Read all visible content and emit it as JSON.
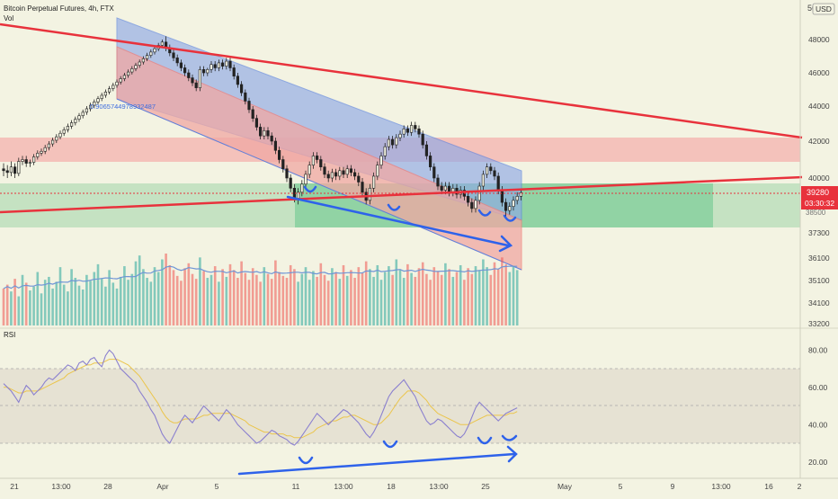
{
  "header": {
    "title": "Bitcoin Perpetual Futures, 4h, FTX",
    "vol_label": "Vol",
    "currency": "USD"
  },
  "fib_label": "0.9065744978932487",
  "price_axis": {
    "ticks": [
      48000,
      46000,
      44000,
      42000,
      40000,
      37300,
      36100,
      35100,
      34100,
      33200
    ],
    "top_partial": "50"
  },
  "last_price": {
    "value": "39280",
    "countdown": "03:30:32",
    "partial": "38500"
  },
  "rsi": {
    "label": "RSI",
    "ticks": [
      "80.00",
      "60.00",
      "40.00",
      "20.00"
    ],
    "band": [
      30,
      70
    ],
    "midline": 50
  },
  "time_axis": {
    "labels": [
      "21",
      "13:00",
      "28",
      "Apr",
      "5",
      "11",
      "13:00",
      "18",
      "13:00",
      "25",
      "May",
      "5",
      "9",
      "13:00",
      "16",
      "2"
    ]
  },
  "colors": {
    "background": "#f3f3e2",
    "up": "#26a69a",
    "down": "#ef5350",
    "trendline": "#e8323c",
    "annotation": "#2e62ea",
    "channel_upper": "#8ea9e6",
    "channel_lower": "#f1a8a3",
    "support_zone": "#7fce9a",
    "resistance_zone": "#f3b9b4",
    "rsi_line": "#8b80cf",
    "rsi_ma": "#ebc54c",
    "volume_ma": "#6f95d6"
  },
  "chart_data": {
    "type": "candlestick",
    "title": "Bitcoin Perpetual Futures, 4h, FTX",
    "ylabel": "USD",
    "ylim": [
      33000,
      50000
    ],
    "candles": [
      [
        40500,
        40400,
        40800,
        40100
      ],
      [
        40400,
        40300,
        40700,
        40000
      ],
      [
        40300,
        40600,
        40900,
        40100
      ],
      [
        40600,
        40250,
        40800,
        40000
      ],
      [
        40250,
        40900,
        41100,
        40100
      ],
      [
        40900,
        41000,
        41200,
        40700
      ],
      [
        41000,
        40800,
        41200,
        40600
      ],
      [
        40800,
        40850,
        41000,
        40600
      ],
      [
        40850,
        41150,
        41300,
        40700
      ],
      [
        41150,
        41350,
        41500,
        41000
      ],
      [
        41350,
        41450,
        41600,
        41200
      ],
      [
        41450,
        41650,
        41800,
        41300
      ],
      [
        41650,
        41850,
        42000,
        41500
      ],
      [
        41850,
        42050,
        42200,
        41700
      ],
      [
        42050,
        42250,
        42400,
        41900
      ],
      [
        42250,
        42450,
        42600,
        42100
      ],
      [
        42450,
        42650,
        42800,
        42300
      ],
      [
        42650,
        42850,
        43000,
        42500
      ],
      [
        42850,
        43050,
        43200,
        42700
      ],
      [
        43050,
        43250,
        43400,
        42900
      ],
      [
        43250,
        43450,
        43600,
        43100
      ],
      [
        43450,
        43650,
        43800,
        43300
      ],
      [
        43650,
        43850,
        44000,
        43500
      ],
      [
        43850,
        44050,
        44200,
        43700
      ],
      [
        44050,
        44250,
        44400,
        43900
      ],
      [
        44250,
        44450,
        44600,
        44100
      ],
      [
        44450,
        44650,
        44800,
        44300
      ],
      [
        44650,
        44850,
        45000,
        44500
      ],
      [
        44850,
        45050,
        45200,
        44700
      ],
      [
        45050,
        45250,
        45400,
        44900
      ],
      [
        45250,
        45450,
        45600,
        45100
      ],
      [
        45450,
        45650,
        45800,
        45300
      ],
      [
        45650,
        45850,
        46000,
        45500
      ],
      [
        45850,
        46050,
        46200,
        45700
      ],
      [
        46050,
        46250,
        46400,
        45900
      ],
      [
        46250,
        46450,
        46600,
        46100
      ],
      [
        46450,
        46650,
        46800,
        46300
      ],
      [
        46650,
        46850,
        47000,
        46500
      ],
      [
        46850,
        47050,
        47200,
        46700
      ],
      [
        47050,
        47250,
        47400,
        46900
      ],
      [
        47250,
        47450,
        47600,
        47100
      ],
      [
        47450,
        47650,
        47800,
        47300
      ],
      [
        47650,
        47850,
        48000,
        47500
      ],
      [
        47850,
        47500,
        48200,
        47300
      ],
      [
        47500,
        47200,
        47700,
        47000
      ],
      [
        47200,
        46900,
        47400,
        46700
      ],
      [
        46900,
        46600,
        47100,
        46400
      ],
      [
        46600,
        46300,
        46800,
        46100
      ],
      [
        46300,
        46000,
        46500,
        45800
      ],
      [
        46000,
        45700,
        46200,
        45500
      ],
      [
        45700,
        45400,
        45900,
        45200
      ],
      [
        45400,
        45100,
        45600,
        44900
      ],
      [
        45100,
        46200,
        46400,
        44900
      ],
      [
        46200,
        46000,
        46400,
        45800
      ],
      [
        46000,
        46200,
        46300,
        45800
      ],
      [
        46200,
        46500,
        46700,
        46000
      ],
      [
        46500,
        46300,
        46700,
        46100
      ],
      [
        46300,
        46600,
        46800,
        46100
      ],
      [
        46600,
        46400,
        46800,
        46200
      ],
      [
        46400,
        46700,
        46900,
        46200
      ],
      [
        46700,
        46300,
        46900,
        46100
      ],
      [
        46300,
        45800,
        46500,
        45600
      ],
      [
        45800,
        45300,
        46000,
        45100
      ],
      [
        45300,
        44800,
        45500,
        44600
      ],
      [
        44800,
        44300,
        45000,
        44100
      ],
      [
        44300,
        43800,
        44500,
        43600
      ],
      [
        43800,
        43300,
        44000,
        43100
      ],
      [
        43300,
        42800,
        43500,
        42600
      ],
      [
        42800,
        42300,
        43000,
        42100
      ],
      [
        42300,
        42600,
        42800,
        42100
      ],
      [
        42600,
        42300,
        42800,
        42100
      ],
      [
        42300,
        42000,
        42500,
        41800
      ],
      [
        42000,
        41500,
        42200,
        41300
      ],
      [
        41500,
        41000,
        41700,
        40800
      ],
      [
        41000,
        40500,
        41200,
        40300
      ],
      [
        40500,
        40000,
        40700,
        39800
      ],
      [
        40000,
        39500,
        40200,
        39300
      ],
      [
        39500,
        39000,
        39700,
        38800
      ],
      [
        39000,
        39300,
        39500,
        38700
      ],
      [
        39300,
        39700,
        39900,
        39100
      ],
      [
        39700,
        40200,
        40400,
        39500
      ],
      [
        40200,
        40700,
        40900,
        40000
      ],
      [
        40700,
        41200,
        41400,
        40500
      ],
      [
        41200,
        41000,
        41400,
        40800
      ],
      [
        41000,
        40600,
        41200,
        40400
      ],
      [
        40600,
        40200,
        40800,
        40000
      ],
      [
        40200,
        40000,
        40400,
        39800
      ],
      [
        40000,
        40300,
        40500,
        39800
      ],
      [
        40300,
        40100,
        40500,
        39900
      ],
      [
        40100,
        40400,
        40600,
        39900
      ],
      [
        40400,
        40200,
        40600,
        40000
      ],
      [
        40200,
        40500,
        40700,
        40000
      ],
      [
        40500,
        40300,
        40700,
        40100
      ],
      [
        40300,
        40100,
        40500,
        39900
      ],
      [
        40100,
        39800,
        40300,
        39600
      ],
      [
        39800,
        39300,
        40000,
        39100
      ],
      [
        39300,
        38900,
        39500,
        38700
      ],
      [
        38900,
        39500,
        39700,
        38700
      ],
      [
        39500,
        40100,
        40300,
        39300
      ],
      [
        40100,
        40700,
        40900,
        39900
      ],
      [
        40700,
        41200,
        41400,
        40500
      ],
      [
        41200,
        41700,
        41900,
        41000
      ],
      [
        41700,
        42100,
        42300,
        41500
      ],
      [
        42100,
        41800,
        42300,
        41600
      ],
      [
        41800,
        42200,
        42400,
        41600
      ],
      [
        42200,
        42400,
        42600,
        42000
      ],
      [
        42400,
        42700,
        42900,
        42200
      ],
      [
        42700,
        42500,
        42900,
        42300
      ],
      [
        42500,
        42900,
        43100,
        42300
      ],
      [
        42900,
        42700,
        43100,
        42500
      ],
      [
        42700,
        42400,
        42900,
        42200
      ],
      [
        42400,
        41800,
        42600,
        41600
      ],
      [
        41800,
        41200,
        42000,
        41000
      ],
      [
        41200,
        40600,
        41400,
        40400
      ],
      [
        40600,
        40000,
        40800,
        39800
      ],
      [
        40000,
        39600,
        40200,
        39400
      ],
      [
        39600,
        39400,
        39800,
        39200
      ],
      [
        39400,
        39600,
        39800,
        39200
      ],
      [
        39600,
        39300,
        39800,
        39100
      ],
      [
        39300,
        39500,
        39700,
        39100
      ],
      [
        39500,
        39200,
        39700,
        39000
      ],
      [
        39200,
        39400,
        39600,
        39000
      ],
      [
        39400,
        39100,
        39600,
        38900
      ],
      [
        39100,
        38800,
        39300,
        38600
      ],
      [
        38800,
        38500,
        39000,
        38300
      ],
      [
        38500,
        38900,
        39100,
        38300
      ],
      [
        38900,
        39600,
        39800,
        38700
      ],
      [
        39600,
        40200,
        40400,
        39400
      ],
      [
        40200,
        40600,
        40800,
        40000
      ],
      [
        40600,
        40400,
        40800,
        40200
      ],
      [
        40400,
        40100,
        40600,
        39900
      ],
      [
        40100,
        39400,
        40300,
        39200
      ],
      [
        39400,
        38800,
        39600,
        38600
      ],
      [
        38800,
        38400,
        39000,
        38100
      ],
      [
        38400,
        38600,
        38800,
        38200
      ],
      [
        38600,
        38900,
        39100,
        38400
      ],
      [
        38900,
        39100,
        39300,
        38700
      ],
      [
        39100,
        39280,
        39400,
        38900
      ]
    ],
    "volume": [
      38,
      42,
      35,
      48,
      30,
      52,
      44,
      36,
      40,
      55,
      33,
      47,
      50,
      38,
      45,
      60,
      42,
      35,
      58,
      49,
      41,
      37,
      52,
      46,
      55,
      63,
      48,
      40,
      57,
      44,
      38,
      50,
      61,
      47,
      53,
      66,
      72,
      58,
      49,
      45,
      60,
      55,
      68,
      74,
      62,
      57,
      51,
      46,
      59,
      64,
      53,
      48,
      70,
      56,
      49,
      52,
      61,
      45,
      58,
      50,
      63,
      57,
      49,
      66,
      54,
      47,
      59,
      52,
      45,
      60,
      53,
      48,
      67,
      55,
      51,
      49,
      62,
      58,
      45,
      53,
      60,
      47,
      56,
      50,
      64,
      52,
      46,
      59,
      55,
      48,
      62,
      51,
      57,
      49,
      60,
      54,
      66,
      58,
      50,
      62,
      47,
      55,
      61,
      52,
      68,
      57,
      49,
      63,
      54,
      50,
      59,
      65,
      53,
      47,
      60,
      56,
      52,
      64,
      58,
      50,
      55,
      62,
      47,
      59,
      53,
      61,
      57,
      68,
      60,
      52,
      65,
      58,
      70,
      63,
      55,
      61,
      57
    ],
    "rsi": [
      62,
      60,
      58,
      55,
      52,
      57,
      61,
      59,
      56,
      58,
      60,
      63,
      65,
      64,
      66,
      68,
      70,
      72,
      71,
      69,
      73,
      74,
      72,
      75,
      76,
      73,
      71,
      77,
      80,
      78,
      74,
      70,
      68,
      66,
      64,
      62,
      58,
      55,
      52,
      48,
      45,
      40,
      35,
      32,
      30,
      34,
      38,
      42,
      45,
      43,
      41,
      44,
      47,
      50,
      48,
      46,
      44,
      42,
      45,
      48,
      46,
      43,
      40,
      38,
      36,
      34,
      32,
      30,
      31,
      33,
      35,
      37,
      36,
      34,
      33,
      32,
      30,
      29,
      31,
      34,
      37,
      40,
      43,
      46,
      44,
      42,
      40,
      42,
      44,
      46,
      48,
      47,
      45,
      43,
      41,
      38,
      35,
      33,
      36,
      40,
      45,
      50,
      55,
      58,
      60,
      62,
      64,
      61,
      58,
      55,
      50,
      46,
      42,
      40,
      41,
      43,
      42,
      40,
      38,
      36,
      34,
      33,
      35,
      39,
      44,
      49,
      52,
      50,
      48,
      46,
      44,
      42,
      44,
      46,
      47,
      48,
      49
    ],
    "rsi_ma": [
      60,
      60,
      59,
      58,
      57,
      57,
      58,
      58,
      58,
      58,
      59,
      60,
      61,
      62,
      63,
      64,
      65,
      67,
      68,
      69,
      70,
      71,
      72,
      72,
      73,
      73,
      73,
      74,
      75,
      75,
      75,
      74,
      73,
      72,
      70,
      68,
      66,
      63,
      60,
      57,
      54,
      51,
      47,
      44,
      42,
      41,
      41,
      42,
      43,
      43,
      43,
      43,
      44,
      45,
      45,
      46,
      46,
      46,
      46,
      46,
      46,
      45,
      44,
      43,
      42,
      40,
      39,
      38,
      37,
      36,
      36,
      35,
      35,
      35,
      35,
      34,
      34,
      33,
      33,
      33,
      34,
      35,
      36,
      38,
      39,
      40,
      41,
      42,
      42,
      43,
      44,
      44,
      45,
      45,
      44,
      43,
      42,
      41,
      40,
      40,
      41,
      43,
      45,
      48,
      51,
      54,
      56,
      58,
      58,
      58,
      57,
      55,
      53,
      50,
      48,
      46,
      45,
      44,
      43,
      42,
      41,
      40,
      40,
      40,
      41,
      42,
      43,
      44,
      45,
      45,
      45,
      45,
      45,
      45,
      46,
      46,
      47
    ],
    "trendlines": [
      {
        "name": "descending resistance",
        "from": [
          "Mar 18",
          49300
        ],
        "to": [
          "May 18",
          42300
        ]
      },
      {
        "name": "ascending support",
        "from": [
          "Mar 18",
          38600
        ],
        "to": [
          "May 18",
          40400
        ]
      }
    ],
    "zones": [
      {
        "name": "resistance zone",
        "range": [
          41000,
          42300
        ]
      },
      {
        "name": "support zone",
        "range": [
          38400,
          39900
        ]
      }
    ]
  }
}
